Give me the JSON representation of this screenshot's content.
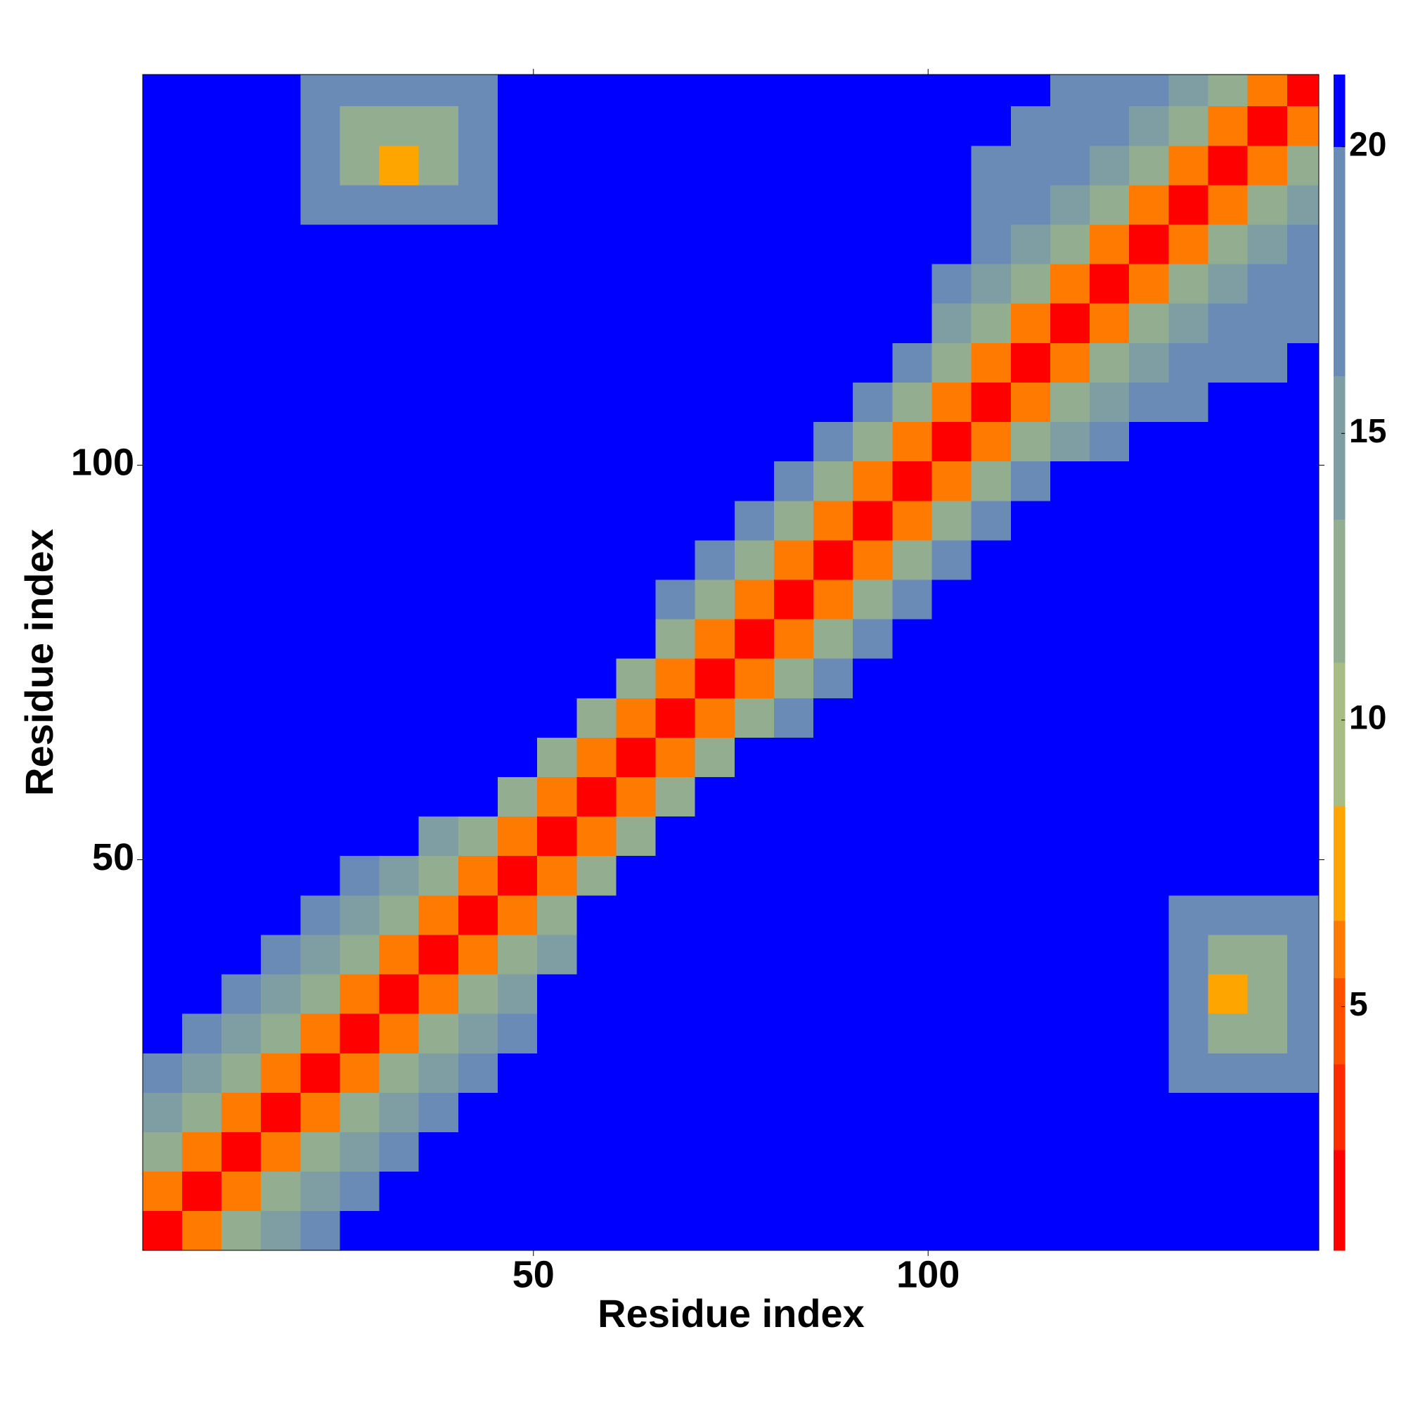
{
  "chart_data": {
    "type": "heatmap",
    "x_label": "Residue index",
    "y_label": "Residue index",
    "xlim": [
      0.5,
      149.5
    ],
    "ylim": [
      0.5,
      149.5
    ],
    "xticks": [
      50,
      100
    ],
    "yticks": [
      50,
      100
    ],
    "xbins": [
      0.5,
      5.5,
      10.5,
      15.5,
      20.5,
      25.5,
      30.5,
      35.5,
      40.5,
      45.5,
      50.5,
      55.5,
      60.5,
      65.5,
      70.5,
      75.5,
      80.5,
      85.5,
      90.5,
      95.5,
      100.5,
      105.5,
      110.5,
      115.5,
      120.5,
      125.5,
      130.5,
      135.5,
      140.5,
      145.5,
      149.5
    ],
    "ybins": [
      0.5,
      5.5,
      10.5,
      15.5,
      20.5,
      25.5,
      30.5,
      35.5,
      40.5,
      45.5,
      50.5,
      55.5,
      60.5,
      65.5,
      70.5,
      75.5,
      80.5,
      85.5,
      90.5,
      95.5,
      100.5,
      105.5,
      110.5,
      115.5,
      120.5,
      125.5,
      130.5,
      135.5,
      140.5,
      145.5,
      149.5
    ],
    "z": [
      [
        2,
        6,
        11,
        15,
        19,
        21,
        21,
        21,
        21,
        21,
        21,
        21,
        21,
        21,
        21,
        21,
        21,
        21,
        21,
        21,
        21,
        21,
        21,
        21,
        21,
        21,
        21,
        21,
        21,
        21
      ],
      [
        6,
        2,
        6,
        11,
        15,
        19,
        21,
        21,
        21,
        21,
        21,
        21,
        21,
        21,
        21,
        21,
        21,
        21,
        21,
        21,
        21,
        21,
        21,
        21,
        21,
        21,
        21,
        21,
        21,
        21
      ],
      [
        11,
        6,
        2,
        6,
        11,
        15,
        19,
        21,
        21,
        21,
        21,
        21,
        21,
        21,
        21,
        21,
        21,
        21,
        21,
        21,
        21,
        21,
        21,
        21,
        21,
        21,
        21,
        21,
        21,
        21
      ],
      [
        15,
        11,
        6,
        2,
        6,
        11,
        15,
        19,
        21,
        21,
        21,
        21,
        21,
        21,
        21,
        21,
        21,
        21,
        21,
        21,
        21,
        21,
        21,
        21,
        21,
        21,
        21,
        21,
        21,
        21
      ],
      [
        19,
        15,
        11,
        6,
        2,
        6,
        11,
        15,
        19,
        21,
        21,
        21,
        21,
        21,
        21,
        21,
        21,
        21,
        21,
        21,
        21,
        21,
        21,
        21,
        21,
        21,
        17,
        17,
        17,
        17
      ],
      [
        21,
        19,
        15,
        11,
        6,
        2,
        6,
        11,
        15,
        19,
        21,
        21,
        21,
        21,
        21,
        21,
        21,
        21,
        21,
        21,
        21,
        21,
        21,
        21,
        21,
        21,
        17,
        12,
        12,
        17
      ],
      [
        21,
        21,
        19,
        15,
        11,
        6,
        2,
        6,
        11,
        15,
        21,
        21,
        21,
        21,
        21,
        21,
        21,
        21,
        21,
        21,
        21,
        21,
        21,
        21,
        21,
        21,
        17,
        8,
        12,
        17
      ],
      [
        21,
        21,
        21,
        19,
        15,
        11,
        6,
        2,
        6,
        11,
        15,
        21,
        21,
        21,
        21,
        21,
        21,
        21,
        21,
        21,
        21,
        21,
        21,
        21,
        21,
        21,
        17,
        12,
        12,
        17
      ],
      [
        21,
        21,
        21,
        21,
        19,
        15,
        11,
        6,
        2,
        6,
        12,
        21,
        21,
        21,
        21,
        21,
        21,
        21,
        21,
        21,
        21,
        21,
        21,
        21,
        21,
        21,
        17,
        17,
        17,
        17
      ],
      [
        21,
        21,
        21,
        21,
        21,
        19,
        15,
        11,
        6,
        2,
        6,
        12,
        21,
        21,
        21,
        21,
        21,
        21,
        21,
        21,
        21,
        21,
        21,
        21,
        21,
        21,
        21,
        21,
        21,
        21
      ],
      [
        21,
        21,
        21,
        21,
        21,
        21,
        21,
        15,
        12,
        6,
        2,
        6,
        12,
        21,
        21,
        21,
        21,
        21,
        21,
        21,
        21,
        21,
        21,
        21,
        21,
        21,
        21,
        21,
        21,
        21
      ],
      [
        21,
        21,
        21,
        21,
        21,
        21,
        21,
        21,
        21,
        12,
        6,
        2,
        6,
        12,
        21,
        21,
        21,
        21,
        21,
        21,
        21,
        21,
        21,
        21,
        21,
        21,
        21,
        21,
        21,
        21
      ],
      [
        21,
        21,
        21,
        21,
        21,
        21,
        21,
        21,
        21,
        21,
        12,
        6,
        2,
        6,
        12,
        21,
        21,
        21,
        21,
        21,
        21,
        21,
        21,
        21,
        21,
        21,
        21,
        21,
        21,
        21
      ],
      [
        21,
        21,
        21,
        21,
        21,
        21,
        21,
        21,
        21,
        21,
        21,
        12,
        6,
        2,
        6,
        11,
        16,
        21,
        21,
        21,
        21,
        21,
        21,
        21,
        21,
        21,
        21,
        21,
        21,
        21
      ],
      [
        21,
        21,
        21,
        21,
        21,
        21,
        21,
        21,
        21,
        21,
        21,
        21,
        12,
        6,
        2,
        6,
        11,
        16,
        21,
        21,
        21,
        21,
        21,
        21,
        21,
        21,
        21,
        21,
        21,
        21
      ],
      [
        21,
        21,
        21,
        21,
        21,
        21,
        21,
        21,
        21,
        21,
        21,
        21,
        21,
        11,
        6,
        2,
        6,
        11,
        16,
        21,
        21,
        21,
        21,
        21,
        21,
        21,
        21,
        21,
        21,
        21
      ],
      [
        21,
        21,
        21,
        21,
        21,
        21,
        21,
        21,
        21,
        21,
        21,
        21,
        21,
        16,
        11,
        6,
        2,
        6,
        11,
        16,
        21,
        21,
        21,
        21,
        21,
        21,
        21,
        21,
        21,
        21
      ],
      [
        21,
        21,
        21,
        21,
        21,
        21,
        21,
        21,
        21,
        21,
        21,
        21,
        21,
        21,
        16,
        11,
        6,
        2,
        6,
        11,
        16,
        21,
        21,
        21,
        21,
        21,
        21,
        21,
        21,
        21
      ],
      [
        21,
        21,
        21,
        21,
        21,
        21,
        21,
        21,
        21,
        21,
        21,
        21,
        21,
        21,
        21,
        16,
        11,
        6,
        2,
        6,
        11,
        16,
        21,
        21,
        21,
        21,
        21,
        21,
        21,
        21
      ],
      [
        21,
        21,
        21,
        21,
        21,
        21,
        21,
        21,
        21,
        21,
        21,
        21,
        21,
        21,
        21,
        21,
        16,
        11,
        6,
        2,
        6,
        11,
        16,
        21,
        21,
        21,
        21,
        21,
        21,
        21
      ],
      [
        21,
        21,
        21,
        21,
        21,
        21,
        21,
        21,
        21,
        21,
        21,
        21,
        21,
        21,
        21,
        21,
        21,
        16,
        11,
        6,
        2,
        6,
        11,
        15,
        17,
        21,
        21,
        21,
        21,
        21
      ],
      [
        21,
        21,
        21,
        21,
        21,
        21,
        21,
        21,
        21,
        21,
        21,
        21,
        21,
        21,
        21,
        21,
        21,
        21,
        16,
        11,
        6,
        2,
        6,
        11,
        15,
        17,
        18,
        21,
        21,
        21
      ],
      [
        21,
        21,
        21,
        21,
        21,
        21,
        21,
        21,
        21,
        21,
        21,
        21,
        21,
        21,
        21,
        21,
        21,
        21,
        21,
        16,
        11,
        6,
        2,
        6,
        11,
        15,
        17,
        18,
        19,
        21
      ],
      [
        21,
        21,
        21,
        21,
        21,
        21,
        21,
        21,
        21,
        21,
        21,
        21,
        21,
        21,
        21,
        21,
        21,
        21,
        21,
        21,
        15,
        11,
        6,
        2,
        6,
        11,
        15,
        17,
        18,
        19
      ],
      [
        21,
        21,
        21,
        21,
        21,
        21,
        21,
        21,
        21,
        21,
        21,
        21,
        21,
        21,
        21,
        21,
        21,
        21,
        21,
        21,
        17,
        15,
        11,
        6,
        2,
        6,
        11,
        15,
        17,
        18
      ],
      [
        21,
        21,
        21,
        21,
        21,
        21,
        21,
        21,
        21,
        21,
        21,
        21,
        21,
        21,
        21,
        21,
        21,
        21,
        21,
        21,
        21,
        17,
        15,
        11,
        6,
        2,
        6,
        11,
        15,
        17
      ],
      [
        21,
        21,
        21,
        21,
        17,
        17,
        17,
        17,
        17,
        21,
        21,
        21,
        21,
        21,
        21,
        21,
        21,
        21,
        21,
        21,
        21,
        18,
        17,
        15,
        11,
        6,
        2,
        6,
        11,
        15
      ],
      [
        21,
        21,
        21,
        21,
        17,
        12,
        8,
        12,
        17,
        21,
        21,
        21,
        21,
        21,
        21,
        21,
        21,
        21,
        21,
        21,
        21,
        19,
        18,
        17,
        15,
        11,
        6,
        2,
        6,
        11
      ],
      [
        21,
        21,
        21,
        21,
        17,
        12,
        12,
        12,
        17,
        21,
        21,
        21,
        21,
        21,
        21,
        21,
        21,
        21,
        21,
        21,
        21,
        21,
        19,
        18,
        17,
        15,
        11,
        6,
        2,
        6
      ],
      [
        21,
        21,
        21,
        21,
        17,
        17,
        17,
        17,
        17,
        21,
        21,
        21,
        21,
        21,
        21,
        21,
        21,
        21,
        21,
        21,
        21,
        21,
        21,
        19,
        18,
        17,
        15,
        11,
        6,
        2
      ]
    ],
    "colorbar": {
      "bounds": [
        0.75,
        2.5,
        4,
        5.5,
        6.5,
        8.5,
        11,
        13.5,
        16,
        20,
        21.26
      ],
      "colors": [
        "#ff0000",
        "#ff2a00",
        "#ff5000",
        "#ff7a00",
        "#ffa500",
        "#a8bd83",
        "#93ad91",
        "#7f9ea3",
        "#6b8bb7",
        "#0000ff"
      ],
      "ticks": [
        5,
        10,
        15,
        20
      ]
    }
  }
}
